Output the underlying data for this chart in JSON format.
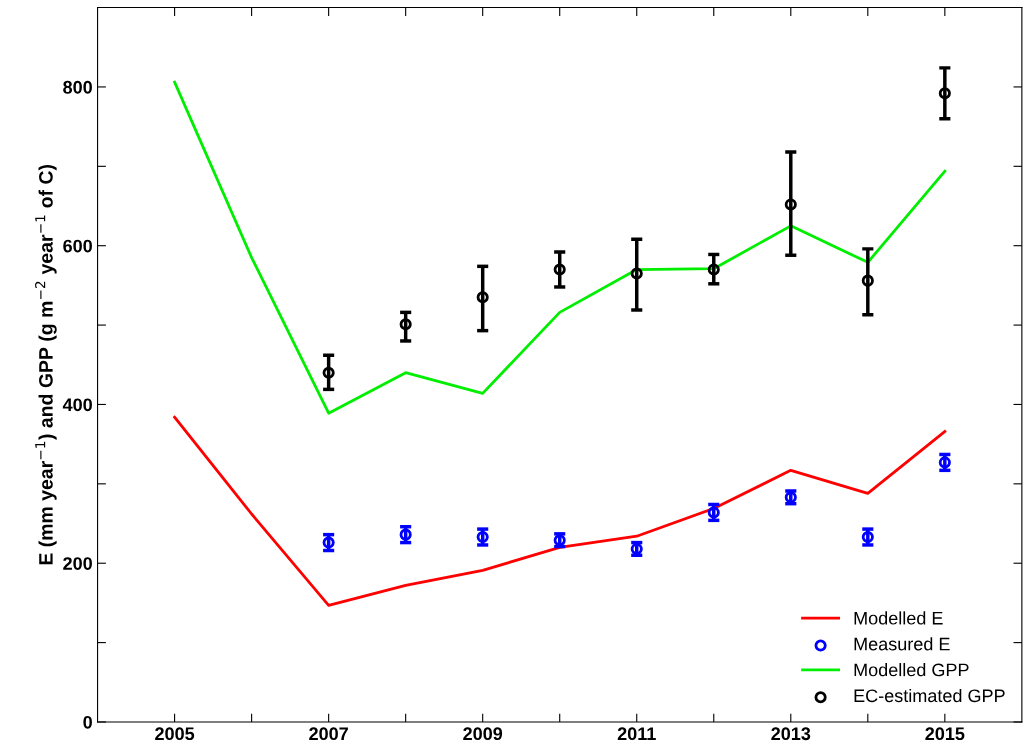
{
  "chart_data": {
    "type": "line",
    "ylabel": "E (mm year$^{−1}$) and GPP (g m$^{−2}$ year$^{−1}$ of C)",
    "xlim": [
      2004,
      2016
    ],
    "xticks": [
      2005,
      {
        "value": 2006,
        "label": null
      },
      2007,
      {
        "value": 2008,
        "label": null
      },
      2009,
      {
        "value": 2010,
        "label": null
      },
      2011,
      {
        "value": 2012,
        "label": null
      },
      2013,
      {
        "value": 2014,
        "label": null
      },
      2015
    ],
    "ylim": [
      0,
      900
    ],
    "yticks": [
      0,
      {
        "value": 100,
        "label": null
      },
      200,
      {
        "value": 300,
        "label": null
      },
      400,
      {
        "value": 500,
        "label": null
      },
      600,
      {
        "value": 700,
        "label": null
      },
      800
    ],
    "grid": false,
    "legend": "bottom right",
    "series": [
      {
        "name": "Modelled E",
        "color": "#ff0000",
        "x": [
          2005,
          2006,
          2007,
          2008,
          2009,
          2010,
          2011,
          2012,
          2013,
          2014,
          2015
        ],
        "values": [
          384,
          262,
          147,
          172,
          191,
          220,
          234,
          269,
          317,
          288,
          366
        ]
      },
      {
        "name": "Measured E",
        "type": "scatter",
        "marker": "circle",
        "color": "#0000ff",
        "x": [
          2007,
          2008,
          2009,
          2010,
          2011,
          2012,
          2013,
          2014,
          2015
        ],
        "values": [
          226,
          236,
          233,
          229,
          218,
          264,
          283,
          233,
          327
        ],
        "errors": [
          10,
          10,
          10,
          8,
          8,
          10,
          8,
          10,
          10
        ]
      },
      {
        "name": "Modelled GPP",
        "color": "#00ee00",
        "x": [
          2005,
          2006,
          2007,
          2008,
          2009,
          2010,
          2011,
          2012,
          2013,
          2014,
          2015
        ],
        "values": [
          806,
          585,
          389,
          440,
          414,
          516,
          570,
          571,
          625,
          579,
          694
        ]
      },
      {
        "name": "EC-estimated GPP",
        "type": "scatter",
        "marker": "circle",
        "color": "#000000",
        "x": [
          2007,
          2008,
          2009,
          2010,
          2011,
          2012,
          2013,
          2014,
          2015
        ],
        "values": [
          440,
          501,
          535,
          570,
          565,
          570,
          652,
          556,
          792
        ],
        "errors": [
          [
            419,
            462
          ],
          [
            480,
            516
          ],
          [
            493,
            574
          ],
          [
            548,
            592
          ],
          [
            519,
            608
          ],
          [
            552,
            589
          ],
          [
            588,
            718
          ],
          [
            513,
            596
          ],
          [
            760,
            824
          ]
        ]
      }
    ]
  }
}
